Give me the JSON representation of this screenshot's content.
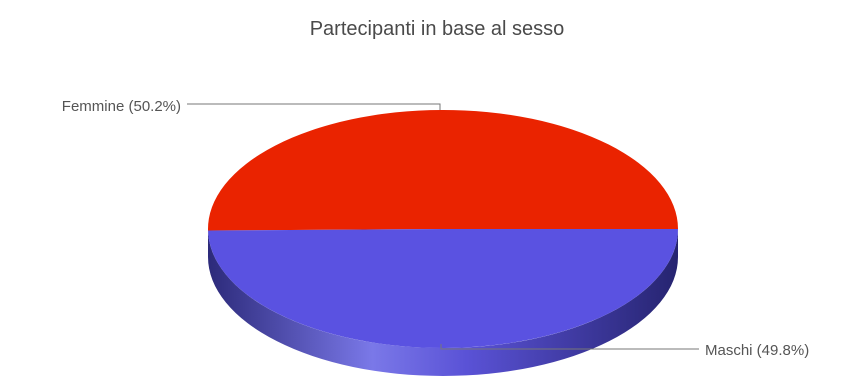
{
  "chart_data": {
    "type": "pie",
    "style": "3d",
    "title": "Partecipanti in base al sesso",
    "slices": [
      {
        "label": "Femmine (50.2%)",
        "category": "Femmine",
        "percent": 50.2,
        "color": "#ea2300",
        "side_color": "#b01a00"
      },
      {
        "label": "Maschi (49.8%)",
        "category": "Maschi",
        "percent": 49.8,
        "color": "#5a52e1",
        "side_color": "#34318f"
      }
    ],
    "legend": "none",
    "labels": "outside-with-leader-lines"
  }
}
